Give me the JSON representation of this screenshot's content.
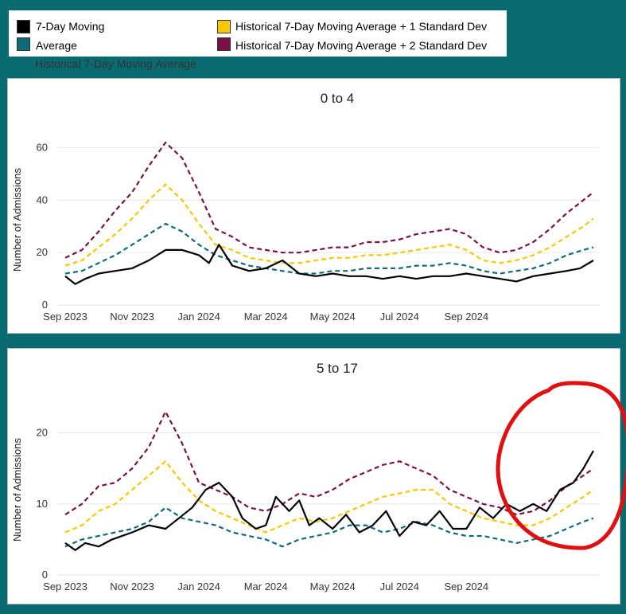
{
  "legend": {
    "items": [
      {
        "label": "7-Day Moving",
        "color": "#000000"
      },
      {
        "label": "Average",
        "color": "#0f6b78"
      },
      {
        "label": "Historical 7-Day Moving Average + 1 Standard Dev",
        "color": "#f5c800"
      },
      {
        "label": "Historical 7-Day Moving Average + 2 Standard Dev",
        "color": "#7a1048"
      }
    ],
    "subtitle": "Historical 7-Day Moving Average"
  },
  "annotation_color": "#e01010",
  "chart_data": [
    {
      "type": "line",
      "title": "0 to 4",
      "ylabel": "Number of Admissions",
      "xlabel": "",
      "x_tick_labels": [
        "Sep 2023",
        "Nov 2023",
        "Jan 2024",
        "Mar 2024",
        "May 2024",
        "Jul 2024",
        "Sep 2024"
      ],
      "ylim": [
        0,
        65
      ],
      "yticks": [
        0,
        20,
        40,
        60
      ],
      "x_range_months": [
        0,
        15.8
      ],
      "series": [
        {
          "name": "7-Day Moving Average",
          "style": "solid",
          "color": "#000000",
          "x": [
            0,
            0.3,
            0.6,
            1,
            1.5,
            2,
            2.5,
            3,
            3.5,
            4,
            4.3,
            4.6,
            5,
            5.5,
            6,
            6.5,
            7,
            7.5,
            8,
            8.5,
            9,
            9.5,
            10,
            10.5,
            11,
            11.5,
            12,
            12.5,
            13,
            13.5,
            14,
            14.5,
            15,
            15.4,
            15.8
          ],
          "y": [
            11,
            8,
            10,
            12,
            13,
            14,
            17,
            21,
            21,
            19,
            16,
            23,
            15,
            13,
            14,
            17,
            12,
            11,
            12,
            11,
            11,
            10,
            11,
            10,
            11,
            11,
            12,
            11,
            10,
            9,
            11,
            12,
            13,
            14,
            17
          ]
        },
        {
          "name": "Average",
          "style": "dashed",
          "color": "#0f6b78",
          "x": [
            0,
            0.5,
            1,
            1.5,
            2,
            2.5,
            3,
            3.5,
            4,
            4.5,
            5,
            5.5,
            6,
            6.5,
            7,
            7.5,
            8,
            8.5,
            9,
            9.5,
            10,
            10.5,
            11,
            11.5,
            12,
            12.5,
            13,
            13.5,
            14,
            14.5,
            15,
            15.5,
            15.8
          ],
          "y": [
            12,
            13,
            16,
            19,
            23,
            27,
            31,
            28,
            23,
            19,
            17,
            15,
            14,
            13,
            12,
            12,
            13,
            13,
            14,
            14,
            14,
            15,
            15,
            16,
            15,
            13,
            12,
            13,
            14,
            16,
            19,
            21,
            22
          ]
        },
        {
          "name": "Historical 7-Day Moving Average + 1 Standard Dev",
          "style": "dashed",
          "color": "#f5c800",
          "x": [
            0,
            0.5,
            1,
            1.5,
            2,
            2.5,
            3,
            3.5,
            4,
            4.5,
            5,
            5.5,
            6,
            6.5,
            7,
            7.5,
            8,
            8.5,
            9,
            9.5,
            10,
            10.5,
            11,
            11.5,
            12,
            12.5,
            13,
            13.5,
            14,
            14.5,
            15,
            15.5,
            15.8
          ],
          "y": [
            15,
            17,
            22,
            27,
            33,
            40,
            46,
            40,
            31,
            23,
            21,
            18,
            17,
            16,
            16,
            17,
            18,
            18,
            19,
            19,
            20,
            21,
            22,
            23,
            21,
            17,
            16,
            17,
            19,
            22,
            26,
            30,
            33
          ]
        },
        {
          "name": "Historical 7-Day Moving Average + 2 Standard Dev",
          "style": "dashed",
          "color": "#7a1048",
          "x": [
            0,
            0.5,
            1,
            1.5,
            2,
            2.5,
            3,
            3.5,
            4,
            4.5,
            5,
            5.5,
            6,
            6.5,
            7,
            7.5,
            8,
            8.5,
            9,
            9.5,
            10,
            10.5,
            11,
            11.5,
            12,
            12.5,
            13,
            13.5,
            14,
            14.5,
            15,
            15.5,
            15.8
          ],
          "y": [
            18,
            21,
            28,
            36,
            43,
            53,
            62,
            56,
            43,
            29,
            26,
            22,
            21,
            20,
            20,
            21,
            22,
            22,
            24,
            24,
            25,
            27,
            28,
            29,
            27,
            22,
            20,
            21,
            24,
            29,
            35,
            40,
            43
          ]
        }
      ]
    },
    {
      "type": "line",
      "title": "5 to 17",
      "ylabel": "Number of Admissions",
      "xlabel": "",
      "x_tick_labels": [
        "Sep 2023",
        "Nov 2023",
        "Jan 2024",
        "Mar 2024",
        "May 2024",
        "Jul 2024",
        "Sep 2024"
      ],
      "ylim": [
        0,
        24
      ],
      "yticks": [
        0,
        10,
        20
      ],
      "x_range_months": [
        0,
        15.8
      ],
      "series": [
        {
          "name": "7-Day Moving Average",
          "style": "solid",
          "color": "#000000",
          "x": [
            0,
            0.3,
            0.6,
            1,
            1.4,
            2,
            2.5,
            3,
            3.4,
            3.8,
            4.2,
            4.6,
            5,
            5.3,
            5.7,
            6,
            6.3,
            6.7,
            7,
            7.3,
            7.6,
            8,
            8.4,
            8.8,
            9.2,
            9.6,
            10,
            10.4,
            10.8,
            11.2,
            11.6,
            12,
            12.4,
            12.8,
            13.2,
            13.6,
            14,
            14.4,
            14.8,
            15.2,
            15.5,
            15.8
          ],
          "y": [
            4.5,
            3.5,
            4.5,
            4,
            5,
            6,
            7,
            6.5,
            8,
            9.5,
            12,
            13,
            11,
            8,
            6.5,
            7,
            11,
            9,
            10.5,
            7,
            8,
            6.5,
            8.5,
            6,
            7,
            9,
            5.5,
            7.5,
            7,
            9,
            6.5,
            6.5,
            9.5,
            8,
            10,
            9,
            10,
            9,
            12,
            13,
            15,
            17.5
          ]
        },
        {
          "name": "Average",
          "style": "dashed",
          "color": "#0f6b78",
          "x": [
            0,
            0.5,
            1,
            1.5,
            2,
            2.5,
            3,
            3.5,
            4,
            4.5,
            5,
            5.5,
            6,
            6.5,
            7,
            7.5,
            8,
            8.5,
            9,
            9.5,
            10,
            10.5,
            11,
            11.5,
            12,
            12.5,
            13,
            13.5,
            14,
            14.5,
            15,
            15.5,
            15.8
          ],
          "y": [
            4,
            5,
            5.5,
            6,
            6.5,
            7.5,
            9.5,
            8,
            7.5,
            7,
            6,
            5.5,
            5,
            4,
            5,
            5.5,
            6,
            7,
            7,
            6,
            6.5,
            7.5,
            7,
            6,
            5.5,
            5.5,
            5,
            4.5,
            5,
            5.5,
            6.5,
            7.5,
            8
          ]
        },
        {
          "name": "Historical 7-Day Moving Average + 1 Standard Dev",
          "style": "dashed",
          "color": "#f5c800",
          "x": [
            0,
            0.5,
            1,
            1.5,
            2,
            2.5,
            3,
            3.5,
            4,
            4.5,
            5,
            5.5,
            6,
            6.5,
            7,
            7.5,
            8,
            8.5,
            9,
            9.5,
            10,
            10.5,
            11,
            11.5,
            12,
            12.5,
            13,
            13.5,
            14,
            14.5,
            15,
            15.5,
            15.8
          ],
          "y": [
            6,
            7,
            9,
            10,
            12,
            14,
            16,
            13,
            10.5,
            9,
            8,
            7,
            6,
            7,
            8,
            7.5,
            8,
            9,
            10,
            11,
            11.5,
            12,
            12,
            10,
            9,
            8,
            7.5,
            7,
            7,
            8,
            9.5,
            11,
            12
          ]
        },
        {
          "name": "Historical 7-Day Moving Average + 2 Standard Dev",
          "style": "dashed",
          "color": "#7a1048",
          "x": [
            0,
            0.5,
            1,
            1.5,
            2,
            2.5,
            3,
            3.5,
            4,
            4.5,
            5,
            5.5,
            6,
            6.5,
            7,
            7.5,
            8,
            8.5,
            9,
            9.5,
            10,
            10.5,
            11,
            11.5,
            12,
            12.5,
            13,
            13.5,
            14,
            14.5,
            15,
            15.5,
            15.8
          ],
          "y": [
            8.5,
            10,
            12.5,
            13,
            15,
            18,
            23,
            18.5,
            13,
            12,
            11,
            9.5,
            9,
            10,
            11.5,
            11,
            12,
            13.5,
            14.5,
            15.5,
            16,
            15,
            14,
            12,
            11,
            10,
            9.5,
            8.5,
            9,
            10.5,
            12.5,
            14,
            15
          ]
        }
      ]
    }
  ]
}
